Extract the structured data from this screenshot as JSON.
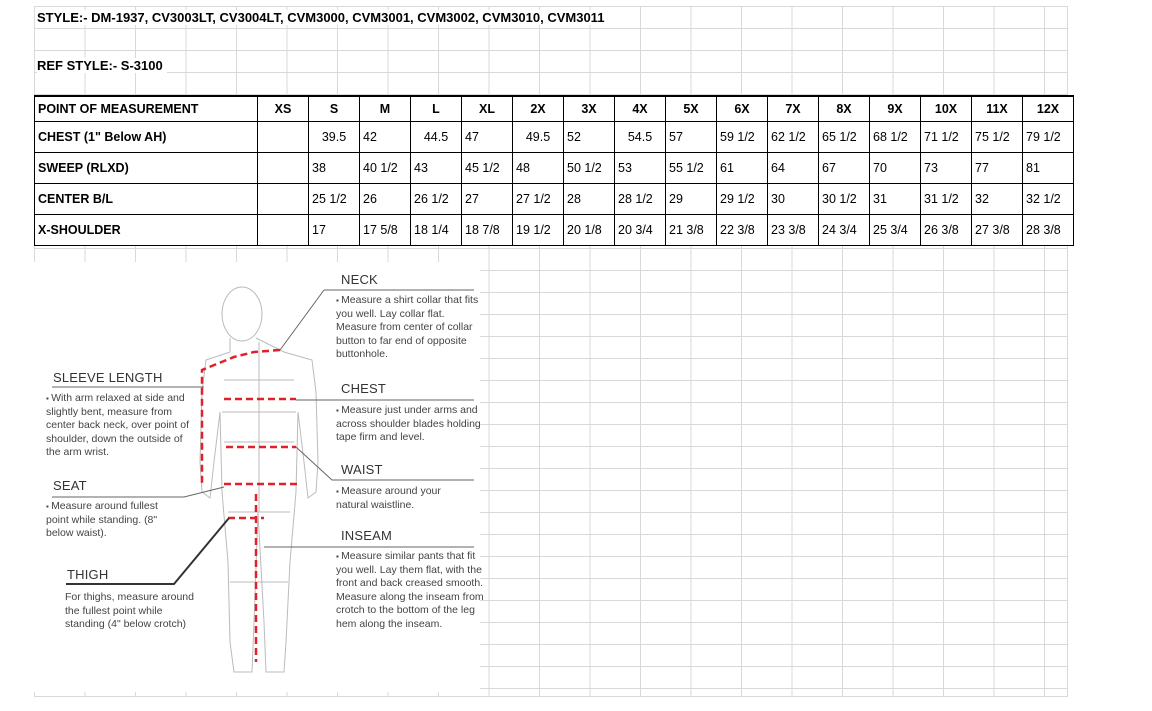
{
  "style_line": "STYLE:- DM-1937, CV3003LT, CV3004LT, CVM3000, CVM3001, CVM3002, CVM3010, CVM3011",
  "ref_style_line": "REF STYLE:- S-3100",
  "table": {
    "headers": [
      "POINT OF MEASUREMENT",
      "XS",
      "S",
      "M",
      "L",
      "XL",
      "2X",
      "3X",
      "4X",
      "5X",
      "6X",
      "7X",
      "8X",
      "9X",
      "10X",
      "11X",
      "12X"
    ],
    "rows": [
      {
        "label": "CHEST (1\" Below AH)",
        "values": [
          "",
          "39.5",
          "42",
          "44.5",
          "47",
          "49.5",
          "52",
          "54.5",
          "57",
          "59 1/2",
          "62 1/2",
          "65 1/2",
          "68 1/2",
          "71 1/2",
          "75 1/2",
          "79 1/2"
        ]
      },
      {
        "label": "SWEEP (RLXD)",
        "values": [
          "",
          "38",
          "40 1/2",
          "43",
          "45 1/2",
          "48",
          "50 1/2",
          "53",
          "55 1/2",
          "61",
          "64",
          "67",
          "70",
          "73",
          "77",
          "81"
        ]
      },
      {
        "label": "CENTER B/L",
        "values": [
          "",
          "25 1/2",
          "26",
          "26 1/2",
          "27",
          "27 1/2",
          "28",
          "28 1/2",
          "29",
          "29 1/2",
          "30",
          "30 1/2",
          "31",
          "31 1/2",
          "32",
          "32 1/2"
        ]
      },
      {
        "label": "X-SHOULDER",
        "values": [
          "",
          "17",
          "17 5/8",
          "18 1/4",
          "18 7/8",
          "19 1/2",
          "20 1/8",
          "20 3/4",
          "21 3/8",
          "22 3/8",
          "23 3/8",
          "24 3/4",
          "25 3/4",
          "26 3/8",
          "27 3/8",
          "28 3/8"
        ]
      }
    ]
  },
  "figure": {
    "neck": {
      "title": "NECK",
      "text": "Measure a shirt collar that fits you well. Lay collar flat. Measure from center of collar button to far end of opposite buttonhole."
    },
    "chest": {
      "title": "CHEST",
      "text": "Measure just under arms and across shoulder blades holding tape firm and level."
    },
    "waist": {
      "title": "WAIST",
      "text": "Measure around your natural waistline."
    },
    "inseam": {
      "title": "INSEAM",
      "text": "Measure similar pants that fit you well. Lay them flat, with the front and back creased smooth. Measure along the inseam from crotch to the bottom of the leg hem along the inseam."
    },
    "sleeve": {
      "title": "SLEEVE LENGTH",
      "text": "With arm relaxed at side and slightly bent, measure from center back neck, over point of shoulder, down the outside of the arm wrist."
    },
    "seat": {
      "title": "SEAT",
      "text": "Measure around fullest point while standing. (8\" below waist)."
    },
    "thigh": {
      "title": "THIGH",
      "text": "For thighs, measure around the fullest point while standing (4\" below crotch)"
    },
    "accent_color": "#e0202a"
  }
}
